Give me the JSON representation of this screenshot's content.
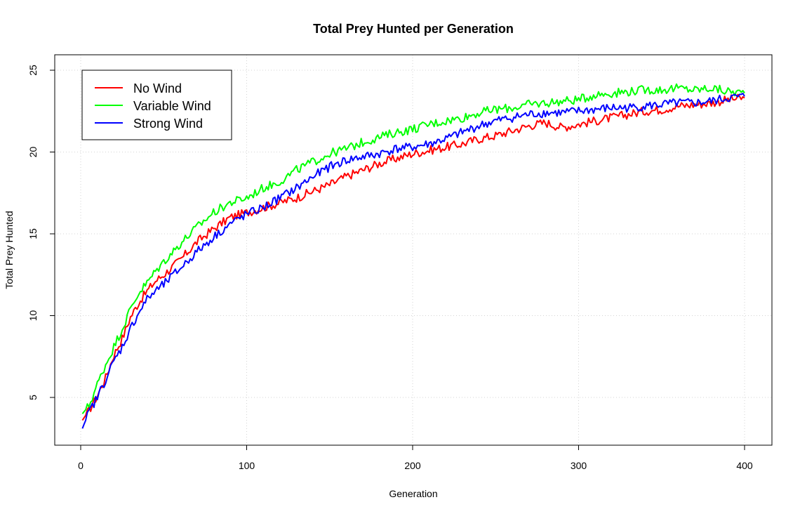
{
  "chart_data": {
    "type": "line",
    "title": "Total Prey Hunted per Generation",
    "xlabel": "Generation",
    "ylabel": "Total Prey Hunted",
    "xlim": [
      0,
      400
    ],
    "ylim": [
      2.5,
      25
    ],
    "xticks": [
      0,
      100,
      200,
      300,
      400
    ],
    "yticks": [
      5,
      10,
      15,
      20,
      25
    ],
    "grid": true,
    "legend_position": "top-left",
    "series": [
      {
        "name": "No Wind",
        "color": "#ff0000",
        "points": [
          [
            1,
            3.6
          ],
          [
            5,
            4.2
          ],
          [
            10,
            5.1
          ],
          [
            15,
            6.2
          ],
          [
            20,
            7.6
          ],
          [
            25,
            8.6
          ],
          [
            30,
            9.9
          ],
          [
            35,
            10.8
          ],
          [
            40,
            11.5
          ],
          [
            45,
            12.1
          ],
          [
            50,
            12.5
          ],
          [
            60,
            13.4
          ],
          [
            70,
            14.5
          ],
          [
            80,
            15.3
          ],
          [
            90,
            16.0
          ],
          [
            100,
            16.3
          ],
          [
            110,
            16.6
          ],
          [
            120,
            16.9
          ],
          [
            130,
            17.2
          ],
          [
            140,
            17.6
          ],
          [
            150,
            18.0
          ],
          [
            160,
            18.5
          ],
          [
            170,
            18.9
          ],
          [
            180,
            19.3
          ],
          [
            190,
            19.6
          ],
          [
            200,
            19.9
          ],
          [
            210,
            20.1
          ],
          [
            220,
            20.3
          ],
          [
            230,
            20.5
          ],
          [
            240,
            20.8
          ],
          [
            250,
            21.0
          ],
          [
            260,
            21.3
          ],
          [
            270,
            21.6
          ],
          [
            280,
            21.8
          ],
          [
            290,
            21.5
          ],
          [
            300,
            21.7
          ],
          [
            310,
            21.9
          ],
          [
            320,
            22.1
          ],
          [
            330,
            22.3
          ],
          [
            340,
            22.5
          ],
          [
            350,
            22.6
          ],
          [
            360,
            22.8
          ],
          [
            370,
            22.9
          ],
          [
            380,
            23.0
          ],
          [
            390,
            23.2
          ],
          [
            400,
            23.3
          ]
        ]
      },
      {
        "name": "Variable Wind",
        "color": "#00ff00",
        "points": [
          [
            1,
            4.0
          ],
          [
            5,
            4.5
          ],
          [
            10,
            5.8
          ],
          [
            15,
            7.0
          ],
          [
            20,
            8.1
          ],
          [
            25,
            9.2
          ],
          [
            30,
            10.4
          ],
          [
            35,
            11.4
          ],
          [
            40,
            12.0
          ],
          [
            45,
            12.7
          ],
          [
            50,
            13.3
          ],
          [
            60,
            14.4
          ],
          [
            70,
            15.4
          ],
          [
            80,
            16.3
          ],
          [
            90,
            16.9
          ],
          [
            100,
            17.2
          ],
          [
            110,
            17.8
          ],
          [
            120,
            18.2
          ],
          [
            130,
            18.9
          ],
          [
            140,
            19.4
          ],
          [
            150,
            19.9
          ],
          [
            160,
            20.2
          ],
          [
            170,
            20.6
          ],
          [
            180,
            20.9
          ],
          [
            190,
            21.2
          ],
          [
            200,
            21.4
          ],
          [
            210,
            21.7
          ],
          [
            220,
            21.9
          ],
          [
            230,
            22.1
          ],
          [
            240,
            22.4
          ],
          [
            250,
            22.6
          ],
          [
            260,
            22.7
          ],
          [
            270,
            22.9
          ],
          [
            280,
            23.0
          ],
          [
            290,
            23.1
          ],
          [
            300,
            23.2
          ],
          [
            310,
            23.5
          ],
          [
            320,
            23.6
          ],
          [
            330,
            23.7
          ],
          [
            340,
            23.8
          ],
          [
            350,
            23.8
          ],
          [
            360,
            23.9
          ],
          [
            370,
            23.8
          ],
          [
            380,
            23.9
          ],
          [
            390,
            23.7
          ],
          [
            400,
            23.6
          ]
        ]
      },
      {
        "name": "Strong Wind",
        "color": "#0000ff",
        "points": [
          [
            1,
            3.1
          ],
          [
            5,
            4.1
          ],
          [
            10,
            5.0
          ],
          [
            15,
            6.1
          ],
          [
            20,
            7.2
          ],
          [
            25,
            8.1
          ],
          [
            30,
            9.2
          ],
          [
            35,
            10.2
          ],
          [
            40,
            11.0
          ],
          [
            45,
            11.5
          ],
          [
            50,
            11.9
          ],
          [
            60,
            12.9
          ],
          [
            70,
            13.9
          ],
          [
            80,
            14.8
          ],
          [
            90,
            15.6
          ],
          [
            100,
            16.2
          ],
          [
            110,
            16.6
          ],
          [
            120,
            17.2
          ],
          [
            130,
            17.8
          ],
          [
            140,
            18.5
          ],
          [
            150,
            19.1
          ],
          [
            160,
            19.5
          ],
          [
            170,
            19.7
          ],
          [
            180,
            19.9
          ],
          [
            190,
            20.2
          ],
          [
            200,
            20.3
          ],
          [
            210,
            20.5
          ],
          [
            220,
            20.8
          ],
          [
            230,
            21.2
          ],
          [
            240,
            21.6
          ],
          [
            250,
            21.9
          ],
          [
            260,
            22.1
          ],
          [
            270,
            22.3
          ],
          [
            280,
            22.4
          ],
          [
            290,
            22.4
          ],
          [
            300,
            22.5
          ],
          [
            310,
            22.6
          ],
          [
            320,
            22.7
          ],
          [
            330,
            22.7
          ],
          [
            340,
            22.8
          ],
          [
            350,
            22.9
          ],
          [
            360,
            23.0
          ],
          [
            370,
            23.0
          ],
          [
            380,
            23.1
          ],
          [
            390,
            23.3
          ],
          [
            400,
            23.4
          ]
        ]
      }
    ]
  }
}
